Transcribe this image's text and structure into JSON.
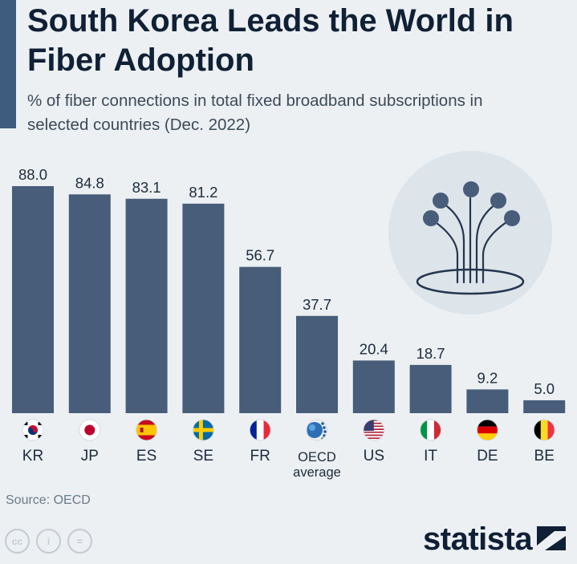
{
  "header": {
    "title": "South Korea Leads the World in Fiber Adoption",
    "subtitle": "% of fiber connections in total fixed broadband subscriptions in selected countries (Dec. 2022)"
  },
  "colors": {
    "bar": "#475d7a",
    "accent": "#3e5d7e",
    "title": "#102035",
    "background": "#ecf0f3"
  },
  "chart_data": {
    "type": "bar",
    "title": "South Korea Leads the World in Fiber Adoption",
    "subtitle": "% of fiber connections in total fixed broadband subscriptions in selected countries (Dec. 2022)",
    "categories": [
      "KR",
      "JP",
      "ES",
      "SE",
      "FR",
      "OECD average",
      "US",
      "IT",
      "DE",
      "BE"
    ],
    "category_lines": [
      [
        "KR"
      ],
      [
        "JP"
      ],
      [
        "ES"
      ],
      [
        "SE"
      ],
      [
        "FR"
      ],
      [
        "OECD",
        "average"
      ],
      [
        "US"
      ],
      [
        "IT"
      ],
      [
        "DE"
      ],
      [
        "BE"
      ]
    ],
    "values": [
      88.0,
      84.8,
      83.1,
      81.2,
      56.7,
      37.7,
      20.4,
      18.7,
      9.2,
      5.0
    ],
    "value_labels": [
      "88.0",
      "84.8",
      "83.1",
      "81.2",
      "56.7",
      "37.7",
      "20.4",
      "18.7",
      "9.2",
      "5.0"
    ],
    "flags": [
      "south-korea-flag-icon",
      "japan-flag-icon",
      "spain-flag-icon",
      "sweden-flag-icon",
      "france-flag-icon",
      "oecd-logo-icon",
      "usa-flag-icon",
      "italy-flag-icon",
      "germany-flag-icon",
      "belgium-flag-icon"
    ],
    "xlabel": "",
    "ylabel": "",
    "ylim": [
      0,
      88
    ],
    "grid": false,
    "data_labels": true
  },
  "illustration": {
    "icon": "fiber-optic-cable-icon"
  },
  "footer": {
    "source": "Source: OECD",
    "brand": "statista",
    "license_icons": [
      "creative-commons-icon",
      "attribution-icon",
      "no-derivatives-icon"
    ],
    "license_labels": [
      "cc",
      "i",
      "="
    ]
  }
}
